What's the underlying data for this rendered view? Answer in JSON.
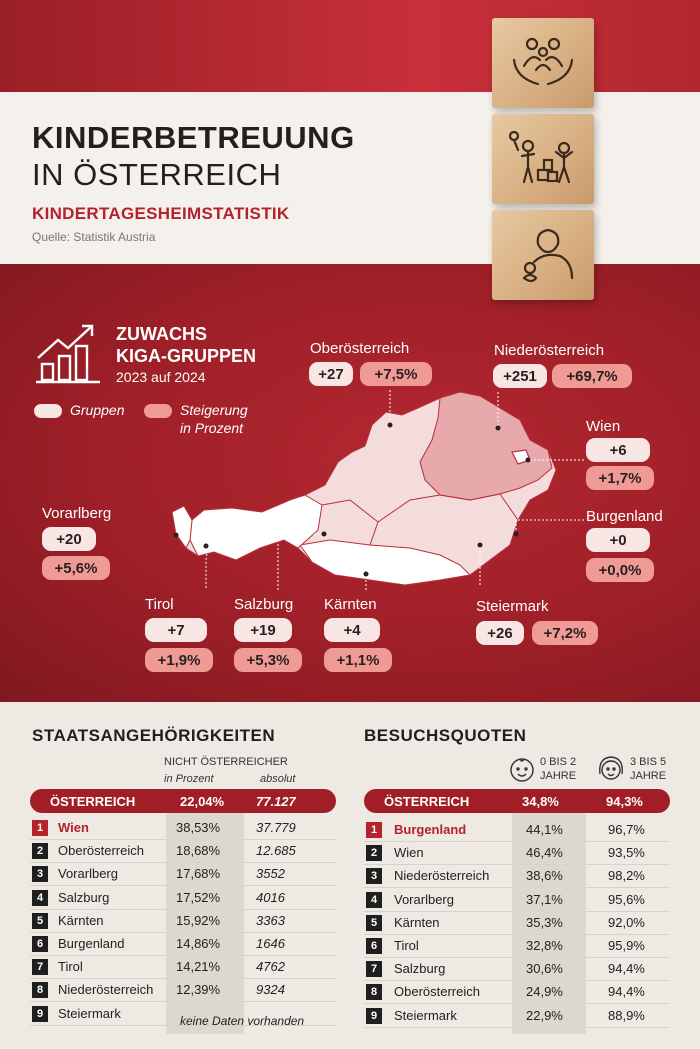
{
  "header": {
    "title_line1": "KINDERBETREUUNG",
    "title_line2": "IN ÖSTERREICH",
    "subtitle": "KINDERTAGESHEIMSTATISTIK",
    "source": "Quelle: Statistik Austria"
  },
  "colors": {
    "brand_red": "#a21e27",
    "pill_light": "#f7e6e4",
    "pill_salmon": "#f09a96"
  },
  "map": {
    "heading1": "ZUWACHS",
    "heading2": "KIGA-GRUPPEN",
    "period": "2023 auf 2024",
    "legend": {
      "groups": "Gruppen",
      "increase_line1": "Steigerung",
      "increase_line2": "in Prozent"
    },
    "icon": "growth-chart-icon"
  },
  "chart_data": {
    "type": "table",
    "title": "ZUWACHS KIGA-GRUPPEN 2023 auf 2024",
    "categories": [
      "Vorarlberg",
      "Tirol",
      "Salzburg",
      "Kärnten",
      "Oberösterreich",
      "Niederösterreich",
      "Wien",
      "Burgenland",
      "Steiermark"
    ],
    "series": [
      {
        "name": "Gruppen",
        "values": [
          "+20",
          "+7",
          "+19",
          "+4",
          "+27",
          "+251",
          "+6",
          "+0",
          "+26"
        ]
      },
      {
        "name": "Steigerung in Prozent",
        "values": [
          "+5,6%",
          "+1,9%",
          "+5,3%",
          "+1,1%",
          "+7,5%",
          "+69,7%",
          "+1,7%",
          "+0,0%",
          "+7,2%"
        ]
      }
    ]
  },
  "nationality": {
    "title": "STAATSANGEHÖRIGKEITEN",
    "col_header": "NICHT ÖSTERREICHER",
    "col1_sub": "in Prozent",
    "col2_sub": "absolut",
    "total": {
      "label": "ÖSTERREICH",
      "pct": "22,04%",
      "abs": "77.127"
    },
    "rows": [
      {
        "rank": "1",
        "name": "Wien",
        "pct": "38,53%",
        "abs": "37.779"
      },
      {
        "rank": "2",
        "name": "Oberösterreich",
        "pct": "18,68%",
        "abs": "12.685"
      },
      {
        "rank": "3",
        "name": "Vorarlberg",
        "pct": "17,68%",
        "abs": "3552"
      },
      {
        "rank": "4",
        "name": "Salzburg",
        "pct": "17,52%",
        "abs": "4016"
      },
      {
        "rank": "5",
        "name": "Kärnten",
        "pct": "15,92%",
        "abs": "3363"
      },
      {
        "rank": "6",
        "name": "Burgenland",
        "pct": "14,86%",
        "abs": "1646"
      },
      {
        "rank": "7",
        "name": "Tirol",
        "pct": "14,21%",
        "abs": "4762"
      },
      {
        "rank": "8",
        "name": "Niederösterreich",
        "pct": "12,39%",
        "abs": "9324"
      },
      {
        "rank": "9",
        "name": "Steiermark",
        "pct": "",
        "abs": ""
      }
    ],
    "no_data": "keine Daten vorhanden"
  },
  "attendance": {
    "title": "BESUCHSQUOTEN",
    "age1": "0 BIS 2",
    "age1b": "JAHRE",
    "age2": "3 BIS 5",
    "age2b": "JAHRE",
    "total": {
      "label": "ÖSTERREICH",
      "a": "34,8%",
      "b": "94,3%"
    },
    "rows": [
      {
        "rank": "1",
        "name": "Burgenland",
        "a": "44,1%",
        "b": "96,7%"
      },
      {
        "rank": "2",
        "name": "Wien",
        "a": "46,4%",
        "b": "93,5%"
      },
      {
        "rank": "3",
        "name": "Niederösterreich",
        "a": "38,6%",
        "b": "98,2%"
      },
      {
        "rank": "4",
        "name": "Vorarlberg",
        "a": "37,1%",
        "b": "95,6%"
      },
      {
        "rank": "5",
        "name": "Kärnten",
        "a": "35,3%",
        "b": "92,0%"
      },
      {
        "rank": "6",
        "name": "Tirol",
        "a": "32,8%",
        "b": "95,9%"
      },
      {
        "rank": "7",
        "name": "Salzburg",
        "a": "30,6%",
        "b": "94,4%"
      },
      {
        "rank": "8",
        "name": "Oberösterreich",
        "a": "24,9%",
        "b": "94,4%"
      },
      {
        "rank": "9",
        "name": "Steiermark",
        "a": "22,9%",
        "b": "88,9%"
      }
    ]
  }
}
